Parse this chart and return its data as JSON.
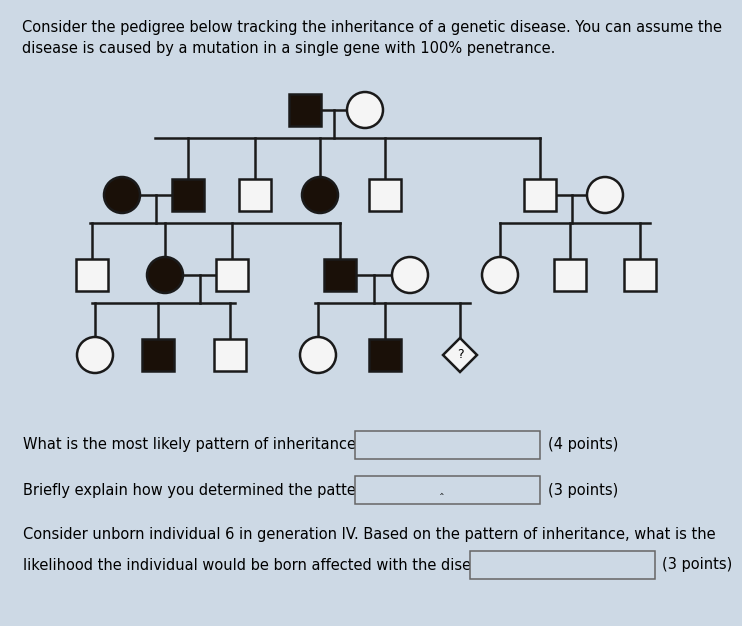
{
  "bg_color": "#cdd9e5",
  "title_text": "Consider the pedigree below tracking the inheritance of a genetic disease. You can assume the\ndisease is caused by a mutation in a single gene with 100% penetrance.",
  "title_fontsize": 10.5,
  "black": "#1a1008",
  "white": "#f5f5f5",
  "line_color": "#1a1a1a",
  "q1_text": "What is the most likely pattern of inheritance?",
  "q2_text": "Briefly explain how you determined the pattern.",
  "q3_text": "Consider unborn individual 6 in generation IV. Based on the pattern of inheritance, what is the",
  "q3b_text": "likelihood the individual would be born affected with the disease?",
  "pts1": "(4 points)",
  "pts2": "(3 points)",
  "pts3": "(3 points)"
}
